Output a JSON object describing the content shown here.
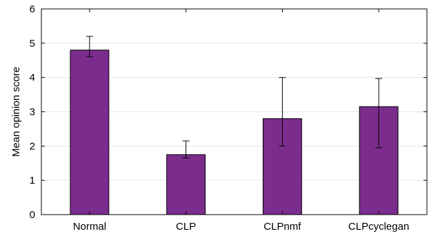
{
  "chart_data": {
    "type": "bar",
    "title": "",
    "xlabel": "",
    "ylabel": "Mean opinion score",
    "categories": [
      "Normal",
      "CLP",
      "CLPnmf",
      "CLPcyclegan"
    ],
    "values": [
      4.8,
      1.75,
      2.8,
      3.15
    ],
    "error_low": [
      4.6,
      1.65,
      2.0,
      1.95
    ],
    "error_high": [
      5.2,
      2.15,
      4.0,
      3.97
    ],
    "ylim": [
      0,
      6
    ],
    "yticks": [
      "0",
      "1",
      "2",
      "3",
      "4",
      "5",
      "6"
    ],
    "grid": true,
    "bar_color": "#7b2d8e",
    "bar_edge_color": "#000000",
    "legend": "none"
  }
}
